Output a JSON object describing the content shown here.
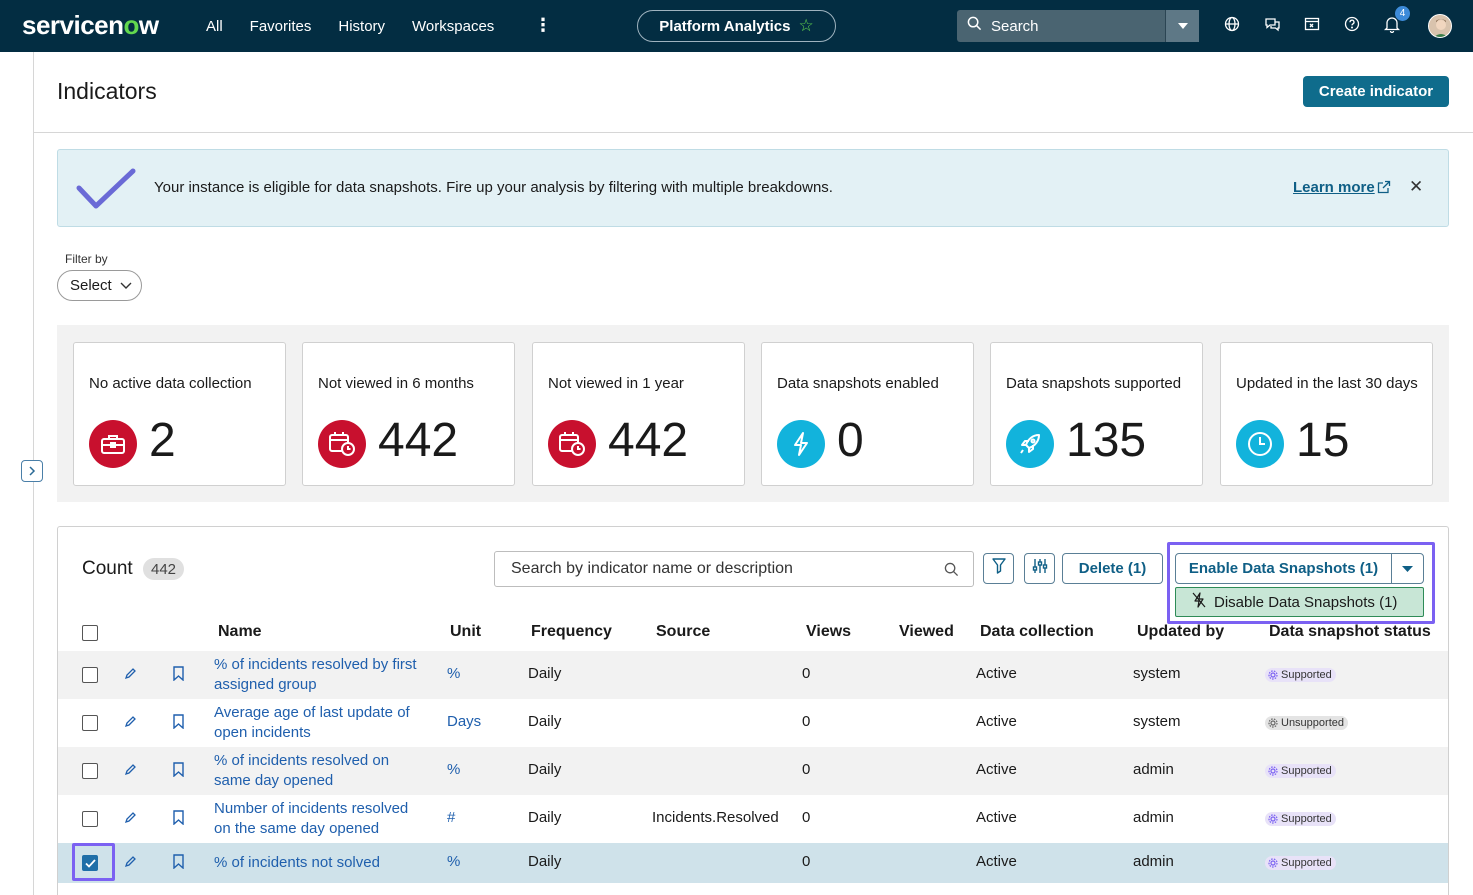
{
  "nav": {
    "logo_a": "servicen",
    "logo_b": "o",
    "logo_c": "w",
    "links": [
      "All",
      "Favorites",
      "History",
      "Workspaces"
    ],
    "more": "⋮",
    "app_pill": "Platform Analytics",
    "search_label": "Search",
    "notification_count": "4",
    "icons": [
      "globe-icon",
      "chat-icon",
      "screen-icon",
      "help-icon",
      "bell-icon"
    ]
  },
  "header": {
    "title": "Indicators",
    "create_label": "Create indicator"
  },
  "banner": {
    "message": "Your instance is eligible for data snapshots. Fire up your analysis by filtering with multiple breakdowns.",
    "learn_more": "Learn more",
    "close": "✕"
  },
  "filter": {
    "label": "Filter by",
    "value": "Select"
  },
  "kpis": [
    {
      "label": "No active data collection",
      "value": "2",
      "icon": "briefcase-icon",
      "color": "#c8102e"
    },
    {
      "label": "Not viewed in 6 months",
      "value": "442",
      "icon": "calendar-clock-icon",
      "color": "#c8102e"
    },
    {
      "label": "Not viewed in 1 year",
      "value": "442",
      "icon": "calendar-clock-icon",
      "color": "#c8102e"
    },
    {
      "label": "Data snapshots enabled",
      "value": "0",
      "icon": "lightning-icon",
      "color": "#12b3dc"
    },
    {
      "label": "Data snapshots supported",
      "value": "135",
      "icon": "rocket-icon",
      "color": "#12b3dc"
    },
    {
      "label": "Updated in the last 30 days",
      "value": "15",
      "icon": "clock-icon",
      "color": "#12b3dc"
    }
  ],
  "list": {
    "count_label": "Count",
    "count_value": "442",
    "search_placeholder": "Search by indicator name or description",
    "delete_label": "Delete (1)",
    "enable_label": "Enable Data Snapshots (1)",
    "disable_label": "Disable Data Snapshots (1)",
    "columns": [
      "Name",
      "Unit",
      "Frequency",
      "Source",
      "Views",
      "Viewed",
      "Data collection",
      "Updated by",
      "Data snapshot status"
    ],
    "rows": [
      {
        "name": "% of incidents resolved by first assigned group",
        "unit": "%",
        "frequency": "Daily",
        "source": "",
        "views": "0",
        "viewed": "",
        "collection": "Active",
        "updated_by": "system",
        "status": "Supported",
        "checked": false
      },
      {
        "name": "Average age of last update of open incidents",
        "unit": "Days",
        "frequency": "Daily",
        "source": "",
        "views": "0",
        "viewed": "",
        "collection": "Active",
        "updated_by": "system",
        "status": "Unsupported",
        "checked": false
      },
      {
        "name": "% of incidents resolved on same day opened",
        "unit": "%",
        "frequency": "Daily",
        "source": "",
        "views": "0",
        "viewed": "",
        "collection": "Active",
        "updated_by": "admin",
        "status": "Supported",
        "checked": false
      },
      {
        "name": "Number of incidents resolved on the same day opened",
        "unit": "#",
        "frequency": "Daily",
        "source": "Incidents.Resolved",
        "views": "0",
        "viewed": "",
        "collection": "Active",
        "updated_by": "admin",
        "status": "Supported",
        "checked": false
      },
      {
        "name": "% of incidents not solved",
        "unit": "%",
        "frequency": "Daily",
        "source": "",
        "views": "0",
        "viewed": "",
        "collection": "Active",
        "updated_by": "admin",
        "status": "Supported",
        "checked": true
      }
    ]
  },
  "colors": {
    "nav_bg": "#032d42",
    "brand_green": "#62d84e",
    "primary": "#0f6c8c",
    "link": "#1f5fad",
    "highlight_outline": "#7b61f2"
  }
}
